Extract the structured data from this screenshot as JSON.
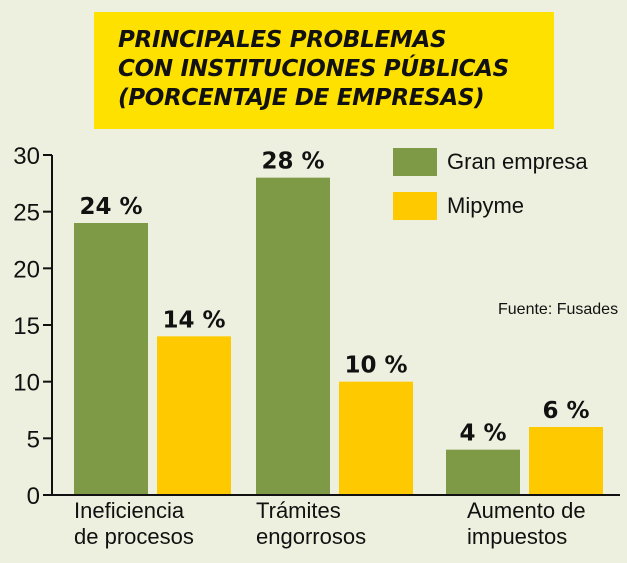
{
  "title_lines": [
    "PRINCIPALES PROBLEMAS",
    "CON INSTITUCIONES PÚBLICAS",
    "(PORCENTAJE DE EMPRESAS)"
  ],
  "source": "Fuente: Fusades",
  "colors": {
    "gran_empresa": "#7e9a47",
    "mipyme": "#ffc900",
    "title_background": "#ffe100",
    "background": "#eef0df"
  },
  "chart_data": {
    "type": "bar",
    "categories": [
      [
        "Ineficiencia",
        "de procesos"
      ],
      [
        "Trámites",
        "engorrosos"
      ],
      [
        "Aumento de",
        "impuestos"
      ]
    ],
    "series": [
      {
        "name": "Gran empresa",
        "values": [
          24,
          28,
          4
        ],
        "labels": [
          "24 %",
          "28 %",
          "4 %"
        ],
        "color": "#7e9a47"
      },
      {
        "name": "Mipyme",
        "values": [
          14,
          10,
          6
        ],
        "labels": [
          "14 %",
          "10 %",
          "6 %"
        ],
        "color": "#ffc900"
      }
    ],
    "ylim": [
      0,
      30
    ],
    "yticks": [
      "0",
      "5",
      "10",
      "15",
      "20",
      "25",
      "30"
    ],
    "legend": "top-right",
    "grid": false
  }
}
